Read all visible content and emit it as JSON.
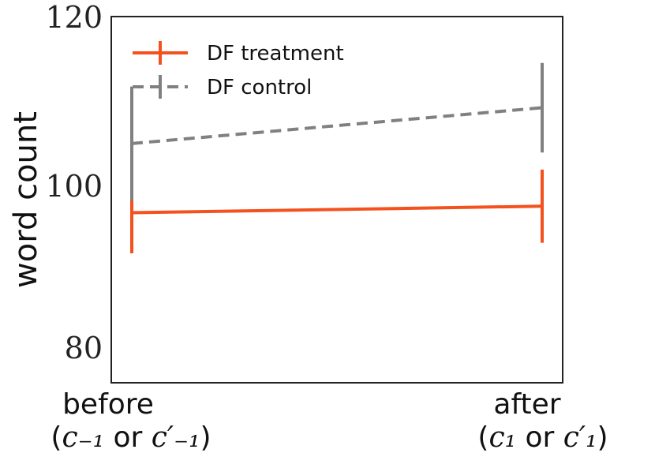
{
  "chart_data": {
    "type": "line",
    "xlabel": "",
    "ylabel": "word count",
    "ylim": [
      75,
      120
    ],
    "yticks": [
      "80",
      "100",
      "120"
    ],
    "categories": [
      {
        "line1": "before",
        "line2_pre": "(",
        "line2_math": "c₋₁",
        "line2_mid": " or ",
        "line2_math2": "c′₋₁",
        "line2_post": ")"
      },
      {
        "line1": "after",
        "line2_pre": "(",
        "line2_math": "c₁",
        "line2_mid": " or ",
        "line2_math2": "c′₁",
        "line2_post": ")"
      }
    ],
    "series": [
      {
        "name": "DF treatment",
        "color": "#f4511e",
        "dash": "solid",
        "values": [
          95.9,
          96.7
        ],
        "err": [
          5.0,
          4.5
        ]
      },
      {
        "name": "DF control",
        "color": "#808080",
        "dash": "dashed",
        "values": [
          104.4,
          108.8
        ],
        "err": [
          7.0,
          5.5
        ]
      }
    ],
    "legend": "top-left",
    "grid": false
  }
}
